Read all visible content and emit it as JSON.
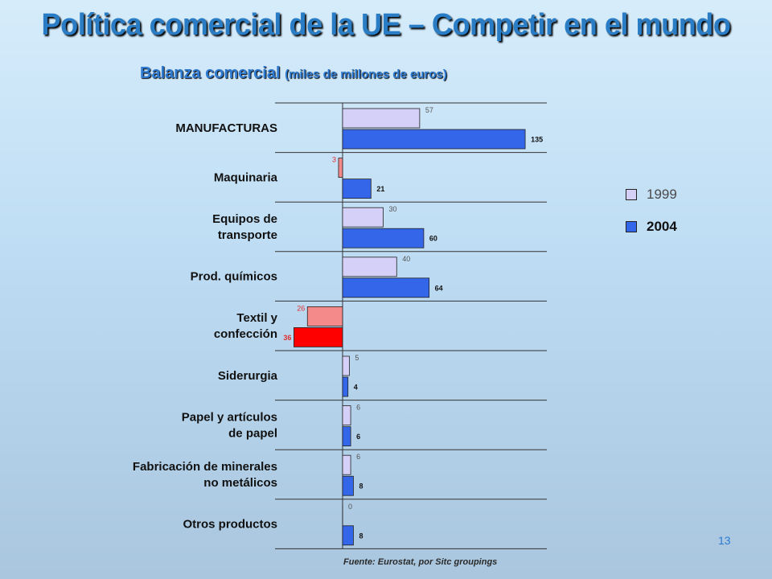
{
  "slide": {
    "title": "Política comercial de la UE – Competir en el mundo",
    "subtitle": "Balanza comercial",
    "subtitle_unit": "(miles de millones de euros)",
    "source": "Fuente: Eurostat, por Sitc groupings",
    "page_number": "13"
  },
  "chart_data": {
    "type": "bar",
    "orientation": "horizontal",
    "categories": [
      [
        "MANUFACTURAS"
      ],
      [
        "Maquinaria"
      ],
      [
        "Equipos de",
        "transporte"
      ],
      [
        "Prod. químicos"
      ],
      [
        "Textil y",
        "confección"
      ],
      [
        "Siderurgia"
      ],
      [
        "Papel y artículos",
        "de papel"
      ],
      [
        "Fabricación de minerales",
        "no metálicos"
      ],
      [
        "Otros productos"
      ]
    ],
    "series": [
      {
        "name": "1999",
        "values": [
          57,
          -3,
          30,
          40,
          -26,
          5,
          6,
          6,
          0
        ],
        "labels": [
          "57",
          "3",
          "30",
          "40",
          "26",
          "5",
          "6",
          "6",
          "0"
        ]
      },
      {
        "name": "2004",
        "values": [
          135,
          21,
          60,
          64,
          -36,
          4,
          6,
          8,
          8
        ],
        "labels": [
          "135",
          "21",
          "60",
          "64",
          "36",
          "4",
          "6",
          "8",
          "8"
        ]
      }
    ],
    "colors": {
      "1999_positive": "#d4d0f8",
      "2004_positive": "#3366e8",
      "1999_negative": "#f48a8a",
      "2004_negative": "#ff0000",
      "negative_label": "#e03030"
    },
    "grid": true,
    "legend_position": "right"
  }
}
